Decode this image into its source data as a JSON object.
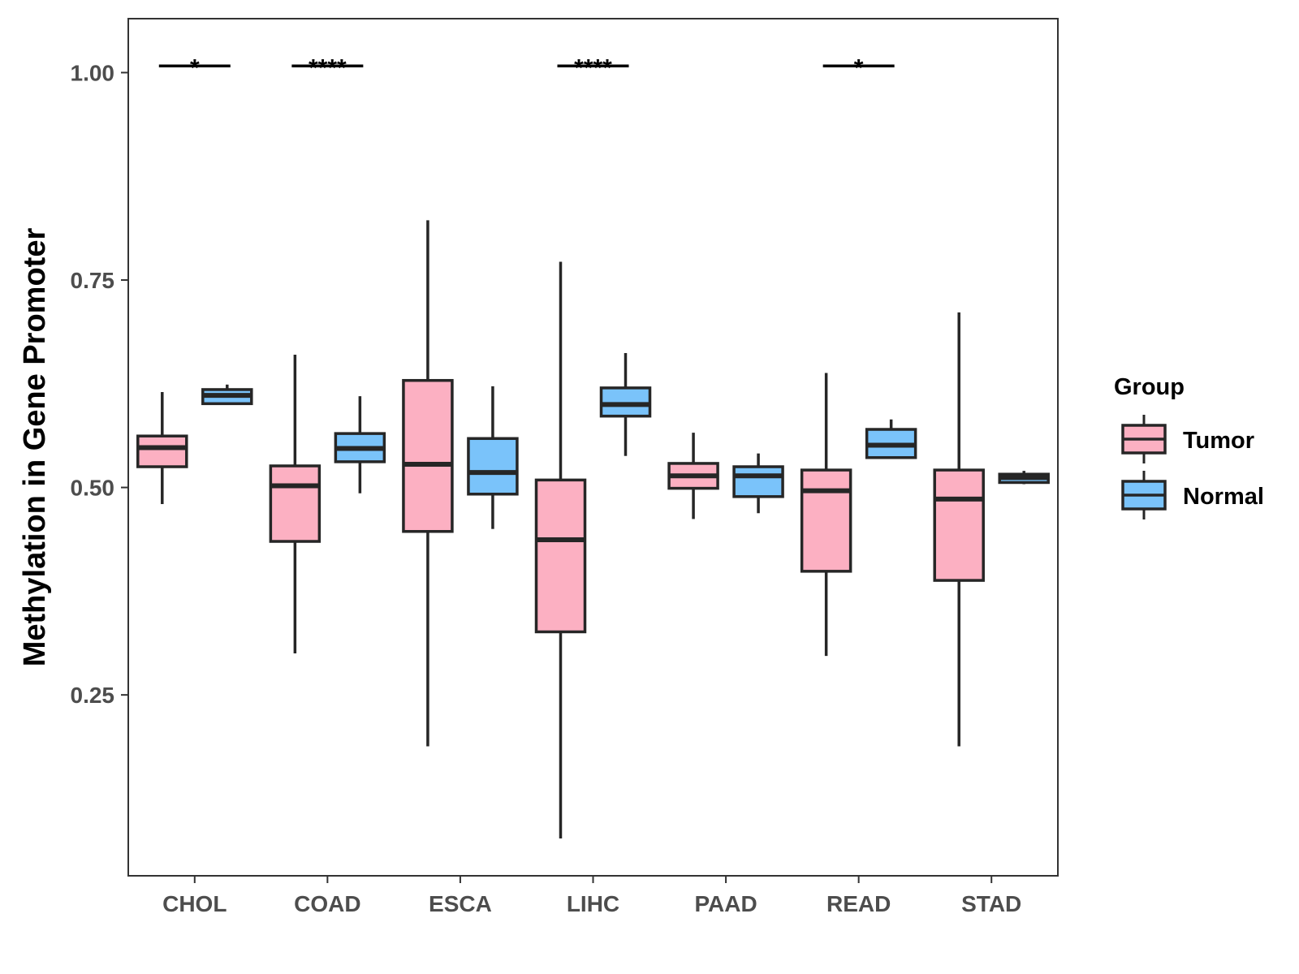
{
  "chart_data": {
    "type": "boxplot",
    "title": "",
    "xlabel": "",
    "ylabel": "Methylation in Gene Promoter",
    "ylim": [
      0.032,
      1.065
    ],
    "yticks": [
      0.25,
      0.5,
      0.75,
      1.0
    ],
    "ytick_labels": [
      "0.25",
      "0.50",
      "0.75",
      "1.00"
    ],
    "grid": false,
    "categories": [
      "CHOL",
      "COAD",
      "ESCA",
      "LIHC",
      "PAAD",
      "READ",
      "STAD"
    ],
    "legend": {
      "title": "Group",
      "position": "right",
      "entries": [
        {
          "name": "Tumor",
          "color": "#fcb0c2"
        },
        {
          "name": "Normal",
          "color": "#7ac3fa"
        }
      ]
    },
    "series": [
      {
        "name": "Tumor",
        "color": "#fcb0c2",
        "boxes": [
          {
            "category": "CHOL",
            "whisker_low": 0.48,
            "q1": 0.525,
            "median": 0.548,
            "q3": 0.562,
            "whisker_high": 0.615
          },
          {
            "category": "COAD",
            "whisker_low": 0.3,
            "q1": 0.435,
            "median": 0.502,
            "q3": 0.526,
            "whisker_high": 0.66
          },
          {
            "category": "ESCA",
            "whisker_low": 0.188,
            "q1": 0.447,
            "median": 0.528,
            "q3": 0.629,
            "whisker_high": 0.822
          },
          {
            "category": "LIHC",
            "whisker_low": 0.077,
            "q1": 0.326,
            "median": 0.437,
            "q3": 0.509,
            "whisker_high": 0.772
          },
          {
            "category": "PAAD",
            "whisker_low": 0.462,
            "q1": 0.499,
            "median": 0.514,
            "q3": 0.529,
            "whisker_high": 0.566
          },
          {
            "category": "READ",
            "whisker_low": 0.297,
            "q1": 0.399,
            "median": 0.496,
            "q3": 0.521,
            "whisker_high": 0.638
          },
          {
            "category": "STAD",
            "whisker_low": 0.188,
            "q1": 0.388,
            "median": 0.486,
            "q3": 0.521,
            "whisker_high": 0.711
          }
        ]
      },
      {
        "name": "Normal",
        "color": "#7ac3fa",
        "boxes": [
          {
            "category": "CHOL",
            "whisker_low": 0.601,
            "q1": 0.601,
            "median": 0.611,
            "q3": 0.618,
            "whisker_high": 0.624
          },
          {
            "category": "COAD",
            "whisker_low": 0.493,
            "q1": 0.531,
            "median": 0.547,
            "q3": 0.565,
            "whisker_high": 0.61
          },
          {
            "category": "ESCA",
            "whisker_low": 0.45,
            "q1": 0.492,
            "median": 0.518,
            "q3": 0.559,
            "whisker_high": 0.622
          },
          {
            "category": "LIHC",
            "whisker_low": 0.538,
            "q1": 0.586,
            "median": 0.6,
            "q3": 0.62,
            "whisker_high": 0.662
          },
          {
            "category": "PAAD",
            "whisker_low": 0.469,
            "q1": 0.489,
            "median": 0.514,
            "q3": 0.525,
            "whisker_high": 0.541
          },
          {
            "category": "READ",
            "whisker_low": 0.536,
            "q1": 0.536,
            "median": 0.551,
            "q3": 0.57,
            "whisker_high": 0.582
          },
          {
            "category": "STAD",
            "whisker_low": 0.504,
            "q1": 0.506,
            "median": 0.512,
            "q3": 0.516,
            "whisker_high": 0.52
          }
        ]
      }
    ],
    "annotations": [
      {
        "category": "CHOL",
        "label": "*",
        "y": 1.008
      },
      {
        "category": "COAD",
        "label": "****",
        "y": 1.008
      },
      {
        "category": "LIHC",
        "label": "****",
        "y": 1.008
      },
      {
        "category": "READ",
        "label": "*",
        "y": 1.008
      }
    ]
  }
}
